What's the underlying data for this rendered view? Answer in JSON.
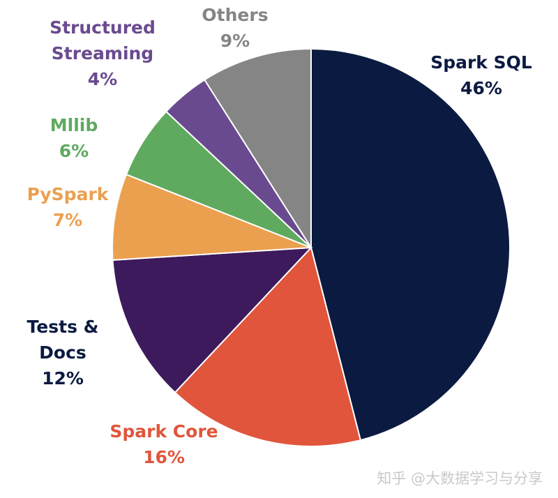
{
  "chart_data": {
    "type": "pie",
    "slices": [
      {
        "name": "Spark SQL",
        "value": 46,
        "pct_label": "46%",
        "color": "#0b1a40",
        "label_lines": [
          "Spark SQL"
        ]
      },
      {
        "name": "Spark Core",
        "value": 16,
        "pct_label": "16%",
        "color": "#e0553b",
        "label_lines": [
          "Spark Core"
        ]
      },
      {
        "name": "Tests & Docs",
        "value": 12,
        "pct_label": "12%",
        "color": "#3d1a5c",
        "label_lines": [
          "Tests &",
          "Docs"
        ]
      },
      {
        "name": "PySpark",
        "value": 7,
        "pct_label": "7%",
        "color": "#eba04f",
        "label_lines": [
          "PySpark"
        ]
      },
      {
        "name": "Mllib",
        "value": 6,
        "pct_label": "6%",
        "color": "#5faa5f",
        "label_lines": [
          "Mllib"
        ]
      },
      {
        "name": "Structured Streaming",
        "value": 4,
        "pct_label": "4%",
        "color": "#6a4a8f",
        "label_lines": [
          "Structured",
          "Streaming"
        ]
      },
      {
        "name": "Others",
        "value": 9,
        "pct_label": "9%",
        "color": "#858585",
        "label_lines": [
          "Others"
        ]
      }
    ],
    "label_colors": {
      "Spark SQL": "#0b1a40",
      "Spark Core": "#e0553b",
      "Tests & Docs": "#0b1a40",
      "PySpark": "#eba04f",
      "Mllib": "#5faa5f",
      "Structured Streaming": "#6a4a8f",
      "Others": "#858585"
    }
  },
  "watermark": "知乎 @大数据学习与分享"
}
